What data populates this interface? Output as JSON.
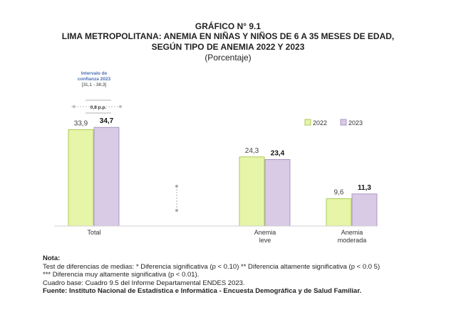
{
  "header": {
    "line1": "GRÁFICO N° 9.1",
    "line2": "LIMA METROPOLITANA: ANEMIA EN NIÑAS Y NIÑOS DE 6 A 35 MESES DE EDAD,",
    "line3": "SEGÚN TIPO DE ANEMIA 2022 Y 2023",
    "line4": "(Porcentaje)"
  },
  "ci": {
    "line1": "Intervalo de",
    "line2": "confianza 2023",
    "range": "[31,1 - 38,3]",
    "diff": "0,8 p.p."
  },
  "chart_data": {
    "type": "bar",
    "categories": [
      [
        "Total"
      ],
      [
        "Anemia",
        "leve"
      ],
      [
        "Anemia",
        "moderada"
      ]
    ],
    "series": [
      {
        "name": "2022",
        "values": [
          33.9,
          24.3,
          9.6
        ],
        "labels": [
          "33,9",
          "24,3",
          "9,6"
        ],
        "color": "#e6f5a8",
        "stroke": "#9bbf3a"
      },
      {
        "name": "2023",
        "values": [
          34.7,
          23.4,
          11.3
        ],
        "labels": [
          "34,7",
          "23,4",
          "11,3"
        ],
        "color": "#d9cbe6",
        "stroke": "#9a86b8"
      }
    ],
    "ylim": [
      0,
      40
    ],
    "legend_position": "top-right",
    "grid": false
  },
  "notes": {
    "heading": "Nota:",
    "line1": "Test de diferencias de medias: * Diferencia significativa (p < 0.10) ** Diferencia altamente significativa (p < 0.0 5)",
    "line2": "*** Diferencia muy altamente significativa (p < 0.01).",
    "line3": "Cuadro base: Cuadro 9.5 del Informe Departamental ENDES 2023.",
    "source": "Fuente: Instituto Nacional de Estadística e Informática - Encuesta Demográfica y de Salud Familiar."
  }
}
